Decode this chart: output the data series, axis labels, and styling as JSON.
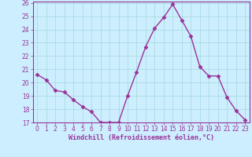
{
  "x": [
    0,
    1,
    2,
    3,
    4,
    5,
    6,
    7,
    8,
    9,
    10,
    11,
    12,
    13,
    14,
    15,
    16,
    17,
    18,
    19,
    20,
    21,
    22,
    23
  ],
  "y": [
    20.6,
    20.2,
    19.4,
    19.3,
    18.7,
    18.2,
    17.8,
    17.0,
    17.0,
    17.0,
    19.0,
    20.8,
    22.7,
    24.1,
    24.9,
    25.9,
    24.7,
    23.5,
    21.2,
    20.5,
    20.5,
    18.9,
    17.9,
    17.2
  ],
  "line_color": "#993399",
  "marker": "D",
  "marker_size": 2.5,
  "bg_color": "#cceeff",
  "grid_color": "#aadddd",
  "xlabel": "Windchill (Refroidissement éolien,°C)",
  "xlabel_color": "#993399",
  "tick_color": "#993399",
  "ylim": [
    17,
    26
  ],
  "xlim": [
    -0.5,
    23.5
  ],
  "yticks": [
    17,
    18,
    19,
    20,
    21,
    22,
    23,
    24,
    25,
    26
  ],
  "xticks": [
    0,
    1,
    2,
    3,
    4,
    5,
    6,
    7,
    8,
    9,
    10,
    11,
    12,
    13,
    14,
    15,
    16,
    17,
    18,
    19,
    20,
    21,
    22,
    23
  ],
  "linewidth": 1.0,
  "marker_color": "#993399",
  "spine_color": "#993399",
  "title_fontsize": 6,
  "tick_fontsize": 5.5,
  "xlabel_fontsize": 6.0
}
